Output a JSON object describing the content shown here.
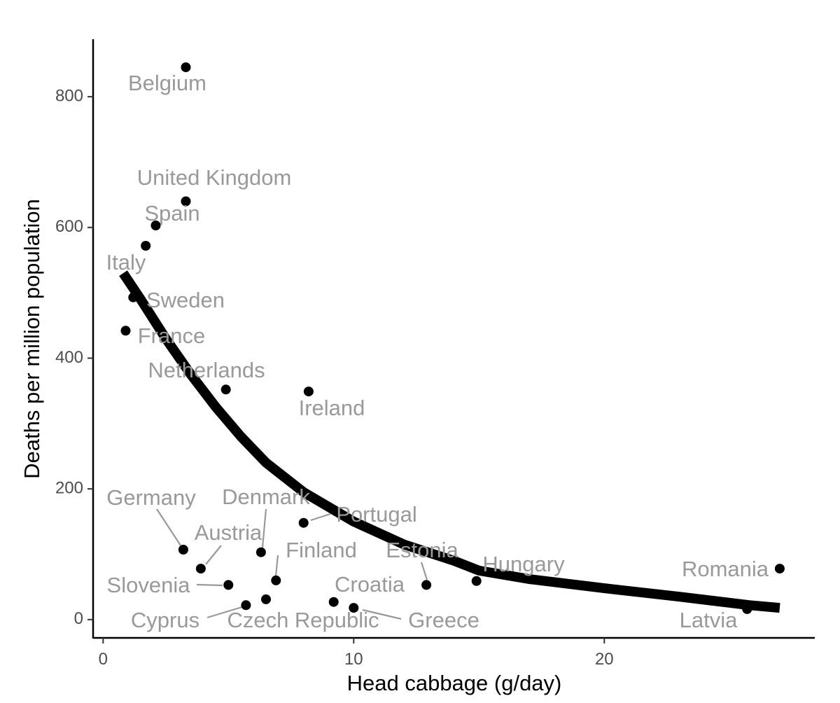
{
  "chart_data": {
    "type": "scatter",
    "title": "",
    "xlabel": "Head cabbage (g/day)",
    "ylabel": "Deaths per million population",
    "xlim": [
      -0.4,
      28.4
    ],
    "ylim": [
      -28,
      888
    ],
    "x_ticks": [
      0,
      10,
      20
    ],
    "y_ticks": [
      0,
      200,
      400,
      600,
      800
    ],
    "grid": false,
    "legend": "none",
    "colors": {
      "point": "#000000",
      "label": "#999999",
      "fit_line": "#000000",
      "axis": "#000000",
      "tick_label": "#4d4d4d"
    },
    "series": [
      {
        "name": "countries",
        "points": [
          {
            "country": "Belgium",
            "x": 3.3,
            "y": 845
          },
          {
            "country": "United Kingdom",
            "x": 3.3,
            "y": 640
          },
          {
            "country": "Spain",
            "x": 2.1,
            "y": 603
          },
          {
            "country": "Italy",
            "x": 1.7,
            "y": 572
          },
          {
            "country": "Sweden",
            "x": 1.2,
            "y": 493
          },
          {
            "country": "France",
            "x": 0.9,
            "y": 442
          },
          {
            "country": "Netherlands",
            "x": 4.9,
            "y": 352
          },
          {
            "country": "Ireland",
            "x": 8.2,
            "y": 349
          },
          {
            "country": "Germany",
            "x": 3.2,
            "y": 107
          },
          {
            "country": "Denmark",
            "x": 6.3,
            "y": 103
          },
          {
            "country": "Portugal",
            "x": 8.0,
            "y": 148
          },
          {
            "country": "Austria",
            "x": 3.9,
            "y": 78
          },
          {
            "country": "Finland",
            "x": 6.9,
            "y": 60
          },
          {
            "country": "Slovenia",
            "x": 5.0,
            "y": 53
          },
          {
            "country": "Cyprus",
            "x": 5.7,
            "y": 22
          },
          {
            "country": "Czech Republic",
            "x": 6.5,
            "y": 31
          },
          {
            "country": "Croatia",
            "x": 9.2,
            "y": 27
          },
          {
            "country": "Greece",
            "x": 10.0,
            "y": 18
          },
          {
            "country": "Estonia",
            "x": 12.9,
            "y": 53
          },
          {
            "country": "Hungary",
            "x": 14.9,
            "y": 59
          },
          {
            "country": "Romania",
            "x": 27.0,
            "y": 78
          },
          {
            "country": "Latvia",
            "x": 25.7,
            "y": 16
          }
        ]
      }
    ],
    "fit_line": {
      "x": [
        0.8,
        1.5,
        2.5,
        3.5,
        4.5,
        5.5,
        6.5,
        8,
        10,
        12,
        14,
        15,
        17,
        20,
        23,
        25.8,
        27
      ],
      "y": [
        530,
        490,
        430,
        375,
        325,
        280,
        240,
        195,
        150,
        115,
        90,
        75,
        62,
        48,
        35,
        22,
        18
      ]
    }
  }
}
